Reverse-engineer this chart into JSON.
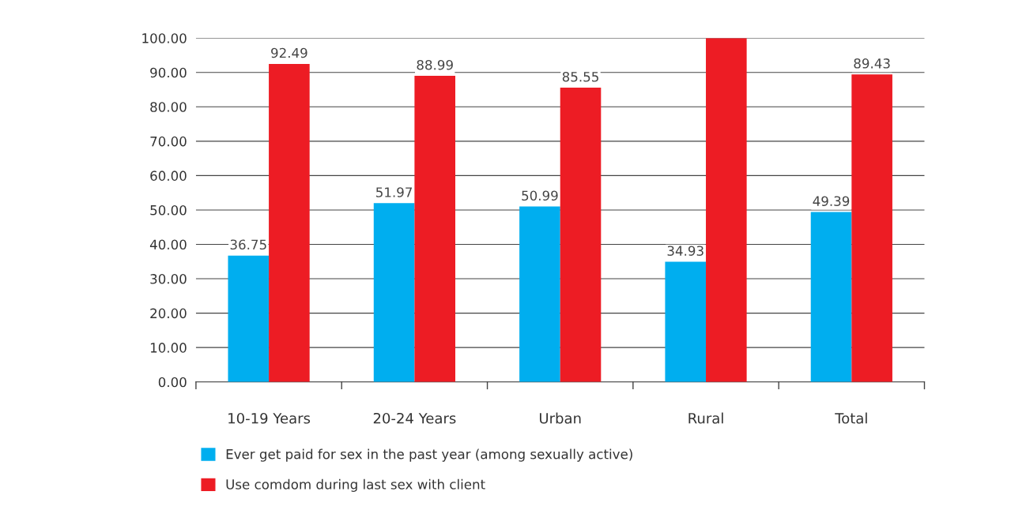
{
  "chart_data": {
    "type": "bar",
    "categories": [
      "10-19 Years",
      "20-24 Years",
      "Urban",
      "Rural",
      "Total"
    ],
    "series": [
      {
        "name": "Ever get paid for sex in the past year (among sexually active)",
        "color": "#00aeef",
        "values": [
          36.75,
          51.97,
          50.99,
          34.93,
          49.39
        ],
        "value_labels": [
          "36.75",
          "51.97",
          "50.99",
          "34.93",
          "49.39"
        ]
      },
      {
        "name": "Use comdom during last sex with client",
        "color": "#ed1c24",
        "values": [
          92.49,
          88.99,
          85.55,
          100,
          89.43
        ],
        "value_labels": [
          "92.49",
          "88.99",
          "85.55",
          null,
          "89.43"
        ]
      }
    ],
    "ylim": [
      0,
      100
    ],
    "yticks": [
      {
        "value": 0,
        "label": "0.00"
      },
      {
        "value": 10,
        "label": "10.00"
      },
      {
        "value": 20,
        "label": "20.00"
      },
      {
        "value": 30,
        "label": "30.00"
      },
      {
        "value": 40,
        "label": "40.00"
      },
      {
        "value": 50,
        "label": "50.00"
      },
      {
        "value": 60,
        "label": "60.00"
      },
      {
        "value": 70,
        "label": "70.00"
      },
      {
        "value": 80,
        "label": "80.00"
      },
      {
        "value": 90,
        "label": "90.00"
      },
      {
        "value": 100,
        "label": "100.00"
      }
    ],
    "grid": "y",
    "legend": "bottom"
  }
}
